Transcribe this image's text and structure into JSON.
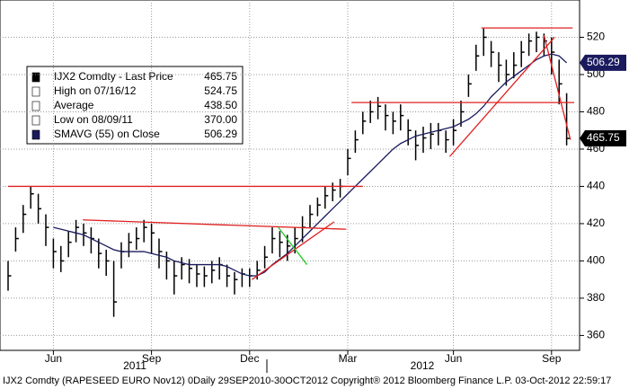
{
  "chart_data": {
    "type": "ohlc",
    "categories": [
      null,
      null,
      null,
      null,
      null,
      null,
      "Jun",
      null,
      null,
      null,
      null,
      null,
      null,
      null,
      null,
      null,
      null,
      null,
      null,
      "Sep",
      null,
      null,
      null,
      null,
      null,
      null,
      null,
      null,
      null,
      null,
      null,
      null,
      "Dec",
      null,
      null,
      null,
      null,
      null,
      null,
      null,
      null,
      null,
      null,
      null,
      null,
      "Mar",
      null,
      null,
      null,
      null,
      null,
      null,
      null,
      null,
      null,
      null,
      null,
      null,
      null,
      "Jun",
      null,
      null,
      null,
      null,
      null,
      null,
      null,
      null,
      null,
      null,
      null,
      null,
      "Sep",
      null,
      null
    ],
    "x_groups": [
      "2011",
      "2012"
    ],
    "series": [
      {
        "name": "IJX2 Comdty - Last Price",
        "color": "#000000",
        "high": [
          400,
          418,
          430,
          440,
          436,
          425,
          412,
          408,
          416,
          422,
          420,
          418,
          412,
          406,
          400,
          410,
          415,
          418,
          422,
          420,
          412,
          405,
          400,
          402,
          401,
          398,
          397,
          400,
          402,
          398,
          394,
          396,
          396,
          400,
          408,
          418,
          416,
          414,
          418,
          424,
          430,
          434,
          440,
          442,
          444,
          460,
          470,
          480,
          486,
          488,
          484,
          480,
          484,
          476,
          470,
          472,
          474,
          474,
          470,
          476,
          486,
          500,
          516,
          524.75,
          518,
          512,
          508,
          512,
          518,
          522,
          523,
          522,
          520,
          508,
          490
        ],
        "low": [
          384,
          405,
          415,
          428,
          420,
          408,
          396,
          394,
          402,
          410,
          408,
          404,
          396,
          392,
          370,
          396,
          402,
          406,
          410,
          404,
          396,
          390,
          382,
          390,
          388,
          386,
          386,
          388,
          390,
          386,
          382,
          386,
          386,
          390,
          396,
          404,
          402,
          400,
          404,
          410,
          418,
          424,
          428,
          432,
          434,
          446,
          458,
          468,
          474,
          476,
          470,
          468,
          470,
          462,
          454,
          458,
          460,
          462,
          458,
          462,
          472,
          488,
          502,
          510,
          504,
          496,
          494,
          498,
          504,
          510,
          512,
          510,
          500,
          484,
          462
        ],
        "close": [
          392,
          412,
          425,
          436,
          428,
          418,
          405,
          400,
          410,
          418,
          415,
          412,
          404,
          400,
          378,
          405,
          410,
          412,
          418,
          415,
          405,
          400,
          392,
          398,
          396,
          393,
          392,
          395,
          398,
          392,
          390,
          393,
          392,
          395,
          402,
          412,
          410,
          408,
          412,
          418,
          425,
          430,
          435,
          438,
          440,
          455,
          465,
          475,
          480,
          483,
          478,
          475,
          478,
          470,
          462,
          466,
          468,
          470,
          465,
          470,
          480,
          495,
          510,
          520,
          512,
          505,
          500,
          505,
          512,
          518,
          520,
          518,
          512,
          495,
          465.75
        ]
      },
      {
        "name": "SMAVG (55) on Close",
        "color": "#1a1a5e",
        "values": [
          null,
          null,
          null,
          null,
          null,
          null,
          418,
          417,
          416,
          415,
          414,
          412,
          410,
          408,
          406,
          405,
          405,
          405,
          405,
          404,
          403,
          402,
          400,
          399,
          398,
          398,
          398,
          398,
          398,
          397,
          395,
          393,
          392,
          392,
          394,
          398,
          401,
          404,
          408,
          412,
          416,
          420,
          424,
          428,
          432,
          436,
          440,
          444,
          448,
          452,
          456,
          460,
          463,
          465,
          467,
          468,
          469,
          470,
          471,
          472,
          474,
          476,
          479,
          483,
          488,
          492,
          496,
          499,
          502,
          505,
          508,
          510,
          511,
          510,
          506.29
        ]
      }
    ],
    "legend": [
      {
        "label": "IJX2 Comdty - Last Price",
        "value": "465.75"
      },
      {
        "label": "High on 07/16/12",
        "value": "524.75"
      },
      {
        "label": "Average",
        "value": "438.50"
      },
      {
        "label": "Low on 08/09/11",
        "value": "370.00"
      },
      {
        "label": "SMAVG (55) on Close",
        "value": "506.29"
      }
    ],
    "trendlines": [
      {
        "color": "#e02020",
        "x": [
          0,
          47
        ],
        "y": [
          440,
          440
        ]
      },
      {
        "color": "#e02020",
        "x": [
          45.5,
          75
        ],
        "y": [
          485,
          485
        ]
      },
      {
        "color": "#e02020",
        "x": [
          62.7,
          74.8
        ],
        "y": [
          525,
          525
        ]
      },
      {
        "color": "#e02020",
        "x": [
          9.9,
          44.8
        ],
        "y": [
          422,
          417
        ]
      },
      {
        "color": "#e02020",
        "x": [
          32.3,
          43.2
        ],
        "y": [
          390,
          421
        ]
      },
      {
        "color": "#e02020",
        "x": [
          58.5,
          72.4
        ],
        "y": [
          456,
          520
        ]
      },
      {
        "color": "#e02020",
        "x": [
          71,
          74.5
        ],
        "y": [
          521,
          465
        ]
      },
      {
        "color": "#22cc22",
        "x": [
          35.8,
          39.6
        ],
        "y": [
          418,
          398
        ]
      }
    ],
    "ylim": [
      352,
      540
    ],
    "yticks": [
      360,
      380,
      400,
      420,
      440,
      460,
      480,
      500,
      520
    ],
    "grid": true,
    "footer": "IJX2 Comdty (RAPESEED EURO  Nov12) 0Daily 29SEP2010-30OCT2012 Copyright® 2012 Bloomberg Finance L.P. 03-Oct-2012 22:59:17"
  }
}
